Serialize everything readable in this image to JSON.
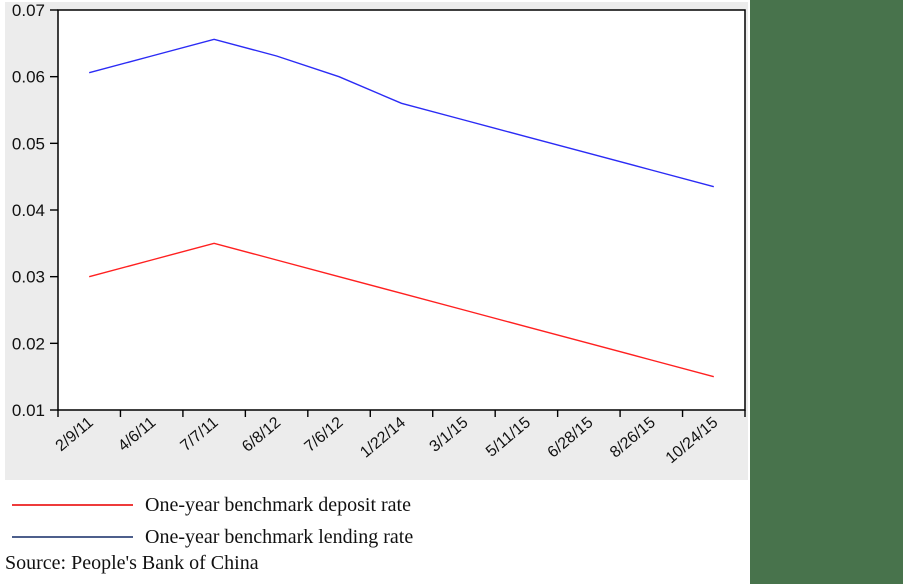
{
  "page": {
    "background": "#ffffff",
    "chart_background": "#ececec",
    "plot_background": "#ffffff",
    "axis_color": "#000000",
    "text_color": "#111111",
    "green_strip_color": "#48734c"
  },
  "chart_data": {
    "type": "line",
    "x": [
      "2/9/11",
      "4/6/11",
      "7/7/11",
      "6/8/12",
      "7/6/12",
      "1/22/14",
      "3/1/15",
      "5/11/15",
      "6/28/15",
      "8/26/15",
      "10/24/15"
    ],
    "series": [
      {
        "name": "One-year benchmark deposit rate",
        "color": "#ff2020",
        "legend_swatch_color": "#ee3b3b",
        "values": [
          0.03,
          0.0325,
          0.035,
          0.0325,
          0.03,
          0.0275,
          0.025,
          0.0225,
          0.02,
          0.0175,
          0.015
        ]
      },
      {
        "name": "One-year benchmark lending rate",
        "color": "#2b2bf5",
        "legend_swatch_color": "#4d5f8c",
        "values": [
          0.0606,
          0.0631,
          0.0656,
          0.0631,
          0.06,
          0.056,
          0.0535,
          0.051,
          0.0485,
          0.046,
          0.0435
        ]
      }
    ],
    "title": "",
    "xlabel": "",
    "ylabel": "",
    "ylim": [
      0.01,
      0.07
    ],
    "yticks": [
      0.01,
      0.02,
      0.03,
      0.04,
      0.05,
      0.06,
      0.07
    ],
    "ytick_decimals": 2,
    "xtick_rotation_deg": -40,
    "grid": false,
    "legend_position": "bottom-left"
  },
  "source": {
    "text": "Source: People's Bank of China"
  }
}
